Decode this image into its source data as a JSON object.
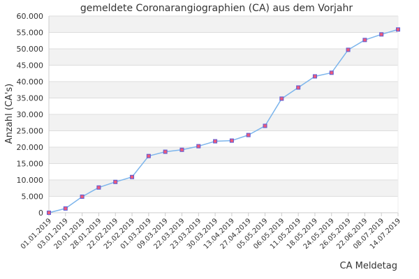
{
  "chart_data": {
    "type": "line",
    "title": "gemeldete Coronarangiographien (CA) aus dem Vorjahr",
    "xlabel": "CA Meldetag",
    "ylabel": "Anzahl (CA's)",
    "ylim": [
      0,
      60000
    ],
    "yticks": [
      "0",
      "5.000",
      "10.000",
      "15.000",
      "20.000",
      "25.000",
      "30.000",
      "35.000",
      "40.000",
      "45.000",
      "50.000",
      "55.000",
      "60.000"
    ],
    "grid": true,
    "colors": {
      "line": "#7cb5ec",
      "marker_fill": "#f05a78",
      "marker_stroke": "#5b5bd6",
      "band": "#f2f2f2",
      "grid": "#dddddd",
      "axis": "#cccccc"
    },
    "categories": [
      "01.01.2019",
      "03.01.2019",
      "20.01.2019",
      "28.01.2019",
      "22.02.2019",
      "25.02.2019",
      "01.03.2019",
      "09.03.2019",
      "22.03.2019",
      "23.03.2019",
      "30.03.2019",
      "13.04.2019",
      "27.04.2019",
      "05.05.2019",
      "06.05.2019",
      "11.05.2019",
      "18.05.2019",
      "24.05.2019",
      "26.05.2019",
      "22.06.2019",
      "08.07.2019",
      "14.07.2019"
    ],
    "series": [
      {
        "values": [
          0,
          1300,
          4900,
          7700,
          9400,
          10900,
          17300,
          18600,
          19200,
          20300,
          21800,
          22000,
          23700,
          26500,
          34800,
          38200,
          41600,
          42700,
          49700,
          52700,
          54400,
          55900
        ]
      }
    ]
  }
}
